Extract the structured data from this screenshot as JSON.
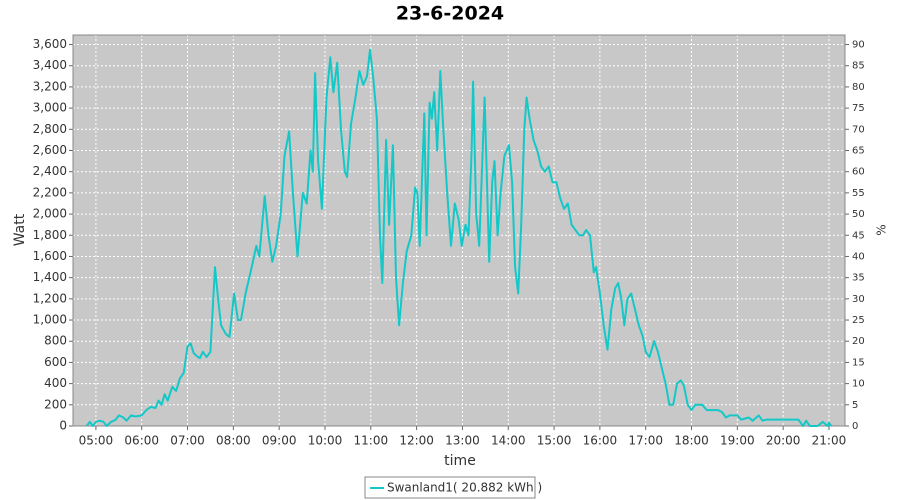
{
  "chart_data": {
    "type": "line",
    "title": "23-6-2024",
    "x_label": "time",
    "y_label": "Watt",
    "y2_label": "%",
    "x": [
      "04:48",
      "04:52",
      "04:56",
      "05:00",
      "05:05",
      "05:10",
      "05:14",
      "05:20",
      "05:26",
      "05:30",
      "05:36",
      "05:40",
      "05:46",
      "05:52",
      "06:00",
      "06:06",
      "06:12",
      "06:18",
      "06:22",
      "06:26",
      "06:30",
      "06:34",
      "06:40",
      "06:45",
      "06:50",
      "06:55",
      "07:00",
      "07:04",
      "07:08",
      "07:12",
      "07:16",
      "07:20",
      "07:25",
      "07:30",
      "07:33",
      "07:36",
      "07:40",
      "07:44",
      "07:50",
      "07:55",
      "08:01",
      "08:06",
      "08:10",
      "08:16",
      "08:24",
      "08:30",
      "08:34",
      "08:41",
      "08:46",
      "08:51",
      "08:56",
      "09:02",
      "09:07",
      "09:13",
      "09:18",
      "09:24",
      "09:31",
      "09:36",
      "09:41",
      "09:44",
      "09:47",
      "09:51",
      "09:56",
      "10:02",
      "10:07",
      "10:11",
      "10:16",
      "10:21",
      "10:26",
      "10:29",
      "10:34",
      "10:40",
      "10:45",
      "10:50",
      "10:55",
      "10:59",
      "11:03",
      "11:08",
      "11:12",
      "11:15",
      "11:20",
      "11:24",
      "11:29",
      "11:33",
      "11:37",
      "11:42",
      "11:47",
      "11:53",
      "11:58",
      "12:01",
      "12:04",
      "12:10",
      "12:13",
      "12:17",
      "12:20",
      "12:23",
      "12:27",
      "12:31",
      "12:35",
      "12:40",
      "12:45",
      "12:50",
      "12:55",
      "12:59",
      "13:04",
      "13:08",
      "13:12",
      "13:14",
      "13:18",
      "13:22",
      "13:26",
      "13:29",
      "13:35",
      "13:39",
      "13:42",
      "13:46",
      "13:50",
      "13:55",
      "14:01",
      "14:05",
      "14:09",
      "14:13",
      "14:17",
      "14:21",
      "14:24",
      "14:28",
      "14:33",
      "14:38",
      "14:43",
      "14:48",
      "14:53",
      "14:58",
      "15:03",
      "15:08",
      "15:13",
      "15:18",
      "15:23",
      "15:28",
      "15:33",
      "15:38",
      "15:42",
      "15:47",
      "15:52",
      "15:55",
      "16:00",
      "16:05",
      "16:10",
      "16:15",
      "16:20",
      "16:24",
      "16:28",
      "16:32",
      "16:36",
      "16:41",
      "16:46",
      "16:51",
      "16:56",
      "17:00",
      "17:05",
      "17:11",
      "17:16",
      "17:21",
      "17:26",
      "17:31",
      "17:36",
      "17:41",
      "17:46",
      "17:50",
      "17:55",
      "18:00",
      "18:05",
      "18:14",
      "18:20",
      "18:35",
      "18:40",
      "18:45",
      "18:50",
      "19:00",
      "19:05",
      "19:15",
      "19:20",
      "19:28",
      "19:33",
      "19:38",
      "20:00",
      "20:20",
      "20:26",
      "20:30",
      "20:35",
      "20:45",
      "20:52",
      "20:58",
      "21:00",
      "21:03"
    ],
    "series": [
      {
        "name": "Swanland1( 20.882 kWh )",
        "color": "#14c8c8",
        "values": [
          0,
          40,
          0,
          40,
          50,
          40,
          0,
          40,
          60,
          100,
          80,
          50,
          100,
          90,
          100,
          150,
          180,
          170,
          240,
          200,
          300,
          240,
          370,
          330,
          450,
          500,
          750,
          780,
          690,
          660,
          640,
          700,
          650,
          700,
          1100,
          1500,
          1200,
          950,
          870,
          840,
          1250,
          1000,
          1000,
          1250,
          1500,
          1700,
          1600,
          2170,
          1800,
          1550,
          1700,
          2000,
          2550,
          2780,
          2200,
          1600,
          2200,
          2100,
          2600,
          2400,
          3330,
          2500,
          2050,
          3100,
          3480,
          3150,
          3430,
          2800,
          2400,
          2350,
          2850,
          3100,
          3350,
          3220,
          3300,
          3550,
          3300,
          2900,
          1800,
          1350,
          2700,
          1900,
          2650,
          1400,
          950,
          1350,
          1650,
          1800,
          2250,
          2200,
          1700,
          2950,
          1800,
          3050,
          2900,
          3150,
          2600,
          3350,
          2800,
          2200,
          1700,
          2100,
          1950,
          1700,
          1900,
          1800,
          2600,
          3250,
          2000,
          1700,
          2500,
          3100,
          1550,
          2300,
          2500,
          1800,
          2200,
          2550,
          2650,
          2300,
          1500,
          1250,
          1900,
          2800,
          3100,
          2900,
          2700,
          2600,
          2450,
          2400,
          2450,
          2300,
          2300,
          2150,
          2050,
          2100,
          1900,
          1850,
          1800,
          1800,
          1850,
          1800,
          1450,
          1500,
          1250,
          950,
          720,
          1100,
          1300,
          1350,
          1200,
          950,
          1200,
          1250,
          1100,
          950,
          850,
          700,
          650,
          800,
          700,
          550,
          400,
          200,
          200,
          400,
          430,
          380,
          200,
          150,
          200,
          200,
          150,
          150,
          130,
          80,
          100,
          100,
          60,
          80,
          50,
          100,
          50,
          60,
          60,
          60,
          0,
          50,
          0,
          0,
          40,
          0,
          30,
          0
        ]
      }
    ],
    "xlim": [
      "04:30",
      "21:21"
    ],
    "xticks": [
      "05:00",
      "06:00",
      "07:00",
      "08:00",
      "09:00",
      "10:00",
      "11:00",
      "12:00",
      "13:00",
      "14:00",
      "15:00",
      "16:00",
      "17:00",
      "18:00",
      "19:00",
      "20:00",
      "21:00"
    ],
    "ylim": [
      0,
      3690
    ],
    "yticks": [
      0,
      200,
      400,
      600,
      800,
      {
        "value": 1000,
        "label": "1,000"
      },
      {
        "value": 1200,
        "label": "1,200"
      },
      {
        "value": 1400,
        "label": "1,400"
      },
      {
        "value": 1600,
        "label": "1,600"
      },
      {
        "value": 1800,
        "label": "1,800"
      },
      {
        "value": 2000,
        "label": "2,000"
      },
      {
        "value": 2200,
        "label": "2,200"
      },
      {
        "value": 2400,
        "label": "2,400"
      },
      {
        "value": 2600,
        "label": "2,600"
      },
      {
        "value": 2800,
        "label": "2,800"
      },
      {
        "value": 3000,
        "label": "3,000"
      },
      {
        "value": 3200,
        "label": "3,200"
      },
      {
        "value": 3400,
        "label": "3,400"
      },
      {
        "value": 3600,
        "label": "3,600"
      }
    ],
    "y2lim": [
      0,
      92.25
    ],
    "y2ticks": [
      0,
      5,
      10,
      15,
      20,
      25,
      30,
      35,
      40,
      45,
      50,
      55,
      60,
      65,
      70,
      75,
      80,
      85,
      90
    ],
    "grid": true,
    "background": "#c8c8c8",
    "legend": "bottom"
  }
}
